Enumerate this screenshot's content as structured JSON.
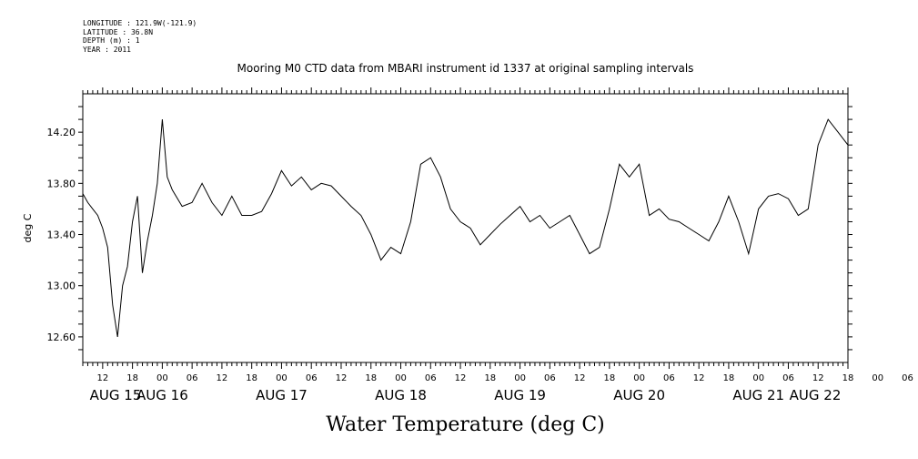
{
  "meta": {
    "longitude": "LONGITUDE : 121.9W(-121.9)",
    "latitude": "LATITUDE : 36.8N",
    "depth": "DEPTH (m) : 1",
    "year": "YEAR : 2011"
  },
  "chart_data": {
    "type": "line",
    "title": "Mooring M0 CTD data from MBARI instrument id 1337 at original sampling intervals",
    "xlabel": "Water Temperature (deg C)",
    "ylabel": "deg C",
    "ylim": [
      12.4,
      14.5
    ],
    "xlim": [
      8,
      162
    ],
    "yticks": [
      "12.60",
      "13.00",
      "13.40",
      "13.80",
      "14.20"
    ],
    "x_hour_ticks": [
      "12",
      "18",
      "00",
      "06",
      "12",
      "18",
      "00",
      "06",
      "12",
      "18",
      "00",
      "06",
      "12",
      "18",
      "00",
      "06",
      "12",
      "18",
      "00",
      "06",
      "12",
      "18",
      "00",
      "06",
      "12",
      "18",
      "00",
      "06"
    ],
    "date_labels": [
      "AUG 15",
      "AUG 16",
      "AUG 17",
      "AUG 18",
      "AUG 19",
      "AUG 20",
      "AUG 21",
      "AUG 22"
    ],
    "x_unit": "hours since 2011-08-15 00:00",
    "series": [
      {
        "color": "#000000",
        "x": [
          8,
          9,
          10,
          11,
          12,
          13,
          14,
          15,
          16,
          17,
          18,
          19,
          20,
          21,
          22,
          23,
          24,
          25,
          26,
          28,
          30,
          32,
          34,
          36,
          38,
          40,
          42,
          44,
          46,
          48,
          50,
          52,
          54,
          56,
          58,
          60,
          62,
          64,
          66,
          68,
          70,
          72,
          74,
          76,
          78,
          80,
          82,
          84,
          86,
          88,
          90,
          92,
          94,
          96,
          98,
          100,
          102,
          104,
          106,
          108,
          110,
          112,
          114,
          116,
          118,
          120,
          122,
          124,
          126,
          128,
          130,
          132,
          134,
          136,
          138,
          140,
          142,
          144,
          146,
          148,
          150,
          152,
          154,
          156,
          158,
          160,
          162
        ],
        "y": [
          13.72,
          13.65,
          13.6,
          13.55,
          13.45,
          13.3,
          12.85,
          12.6,
          13.0,
          13.15,
          13.5,
          13.7,
          13.1,
          13.35,
          13.55,
          13.8,
          14.3,
          13.85,
          13.75,
          13.62,
          13.65,
          13.8,
          13.65,
          13.55,
          13.7,
          13.55,
          13.55,
          13.58,
          13.72,
          13.9,
          13.78,
          13.85,
          13.75,
          13.8,
          13.78,
          13.7,
          13.62,
          13.55,
          13.4,
          13.2,
          13.3,
          13.25,
          13.5,
          13.95,
          14.0,
          13.85,
          13.6,
          13.5,
          13.45,
          13.32,
          13.4,
          13.48,
          13.55,
          13.62,
          13.5,
          13.55,
          13.45,
          13.5,
          13.55,
          13.4,
          13.25,
          13.3,
          13.6,
          13.95,
          13.85,
          13.95,
          13.55,
          13.6,
          13.52,
          13.5,
          13.45,
          13.4,
          13.35,
          13.5,
          13.7,
          13.5,
          13.25,
          13.6,
          13.7,
          13.72,
          13.68,
          13.55,
          13.6,
          14.1,
          14.3,
          14.2,
          14.1
        ]
      }
    ]
  }
}
